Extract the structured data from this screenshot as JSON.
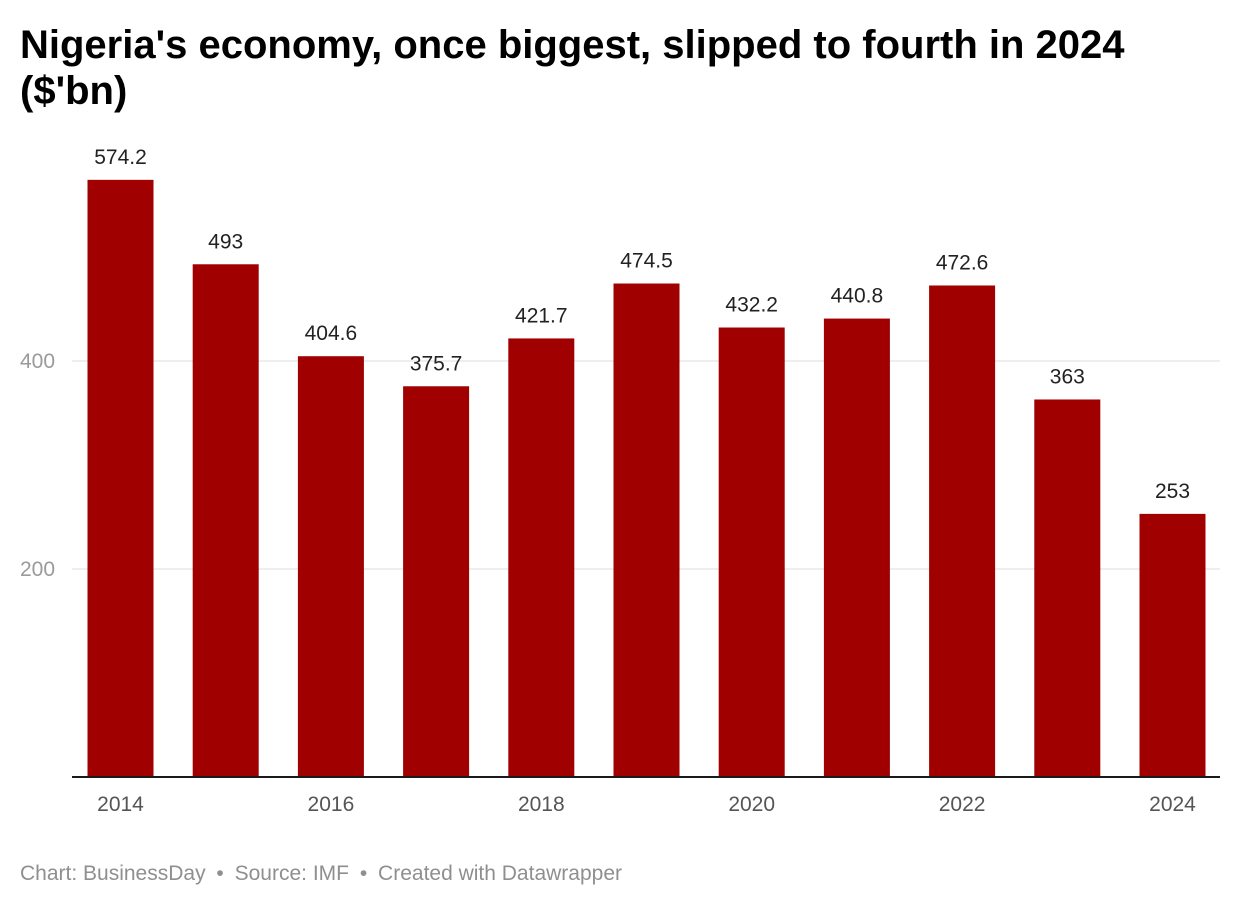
{
  "chart_data": {
    "type": "bar",
    "title": "Nigeria's economy, once biggest, slipped to fourth in 2024 ($'bn)",
    "categories": [
      "2014",
      "2015",
      "2016",
      "2017",
      "2018",
      "2019",
      "2020",
      "2021",
      "2022",
      "2023",
      "2024"
    ],
    "values": [
      574.2,
      493,
      404.6,
      375.7,
      421.7,
      474.5,
      432.2,
      440.8,
      472.6,
      363,
      253
    ],
    "value_labels": [
      "574.2",
      "493",
      "404.6",
      "375.7",
      "421.7",
      "474.5",
      "432.2",
      "440.8",
      "472.6",
      "363",
      "253"
    ],
    "x_tick_labels": [
      "2014",
      "2016",
      "2018",
      "2020",
      "2022",
      "2024"
    ],
    "y_ticks": [
      200,
      400
    ],
    "ylim": [
      0,
      600
    ],
    "grid": true,
    "bar_color": "#a00000",
    "xlabel": "",
    "ylabel": ""
  },
  "footer": {
    "chart_credit": "Chart: BusinessDay",
    "source": "Source: IMF",
    "created_with": "Created with Datawrapper",
    "separator": "•"
  }
}
